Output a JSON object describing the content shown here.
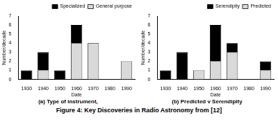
{
  "caption": "Figure 4: Key Discoveries in Radio Astronomy from  [12]",
  "chart_data": [
    {
      "type": "bar",
      "title": "(a) Type of instrument,",
      "x_label": "Date",
      "y_label": "Number/decade",
      "categories": [
        "1930",
        "1940",
        "1950",
        "1960",
        "1970",
        "1980",
        "1990"
      ],
      "series": [
        {
          "name": "Specialized",
          "color": "#000000",
          "values": [
            1,
            2,
            1,
            2,
            0,
            0,
            0
          ]
        },
        {
          "name": "General purpose",
          "color": "#d9d9d9",
          "values": [
            0,
            1,
            0,
            4,
            4,
            0,
            2
          ]
        }
      ],
      "stacked": true,
      "ylim": [
        0,
        7
      ],
      "yticks": [
        0,
        1,
        2,
        3,
        4,
        5,
        6,
        7
      ],
      "grid": false,
      "legend": "upper right"
    },
    {
      "type": "bar",
      "title": "(b) Predicted v Serendipity",
      "x_label": "Date",
      "y_label": "Number/decade",
      "categories": [
        "1930",
        "1940",
        "1950",
        "1960",
        "1970",
        "1980",
        "1990"
      ],
      "series": [
        {
          "name": "Serendipity",
          "color": "#000000",
          "values": [
            1,
            3,
            0,
            4,
            1,
            0,
            1
          ]
        },
        {
          "name": "Predicted",
          "color": "#d9d9d9",
          "values": [
            0,
            0,
            1,
            2,
            3,
            0,
            1
          ]
        }
      ],
      "stacked": true,
      "ylim": [
        0,
        7
      ],
      "yticks": [
        0,
        1,
        2,
        3,
        4,
        5,
        6,
        7
      ],
      "grid": false,
      "legend": "upper right"
    }
  ]
}
